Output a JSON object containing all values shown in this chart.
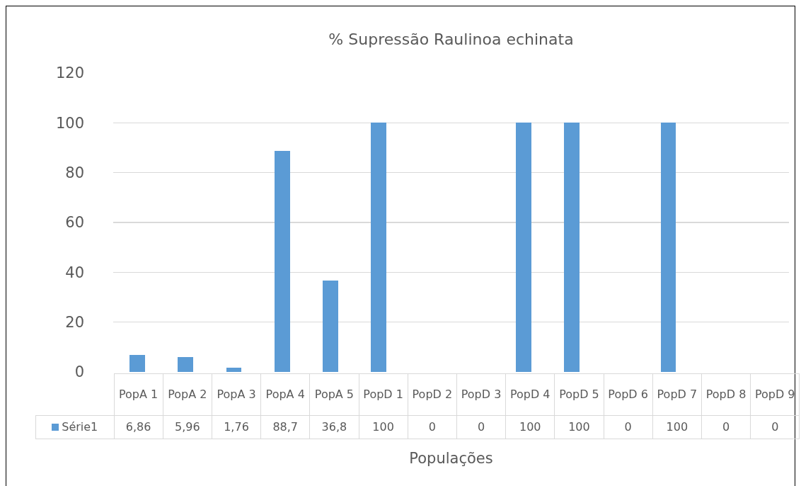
{
  "chart_data": {
    "type": "bar",
    "title": "% Supressão Raulinoa echinata",
    "xlabel": "Populações",
    "categories": [
      "PopA 1",
      "PopA 2",
      "PopA 3",
      "PopA 4",
      "PopA 5",
      "PopD 1",
      "PopD 2",
      "PopD 3",
      "PopD 4",
      "PopD 5",
      "PopD 6",
      "PopD 7",
      "PopD 8",
      "PopD 9"
    ],
    "series": [
      {
        "name": "Série1",
        "color": "#5b9bd5",
        "values": [
          6.86,
          5.96,
          1.76,
          88.7,
          36.8,
          100,
          0,
          0,
          100,
          100,
          0,
          100,
          0,
          0
        ],
        "value_labels": [
          "6,86",
          "5,96",
          "1,76",
          "88,7",
          "36,8",
          "100",
          "0",
          "0",
          "100",
          "100",
          "0",
          "100",
          "0",
          "0"
        ]
      }
    ],
    "data_labels": true,
    "legend": "bottom",
    "ylim": [
      0,
      120
    ],
    "yticks": [
      0,
      20,
      40,
      60,
      80,
      100,
      120
    ],
    "grid": "y"
  }
}
